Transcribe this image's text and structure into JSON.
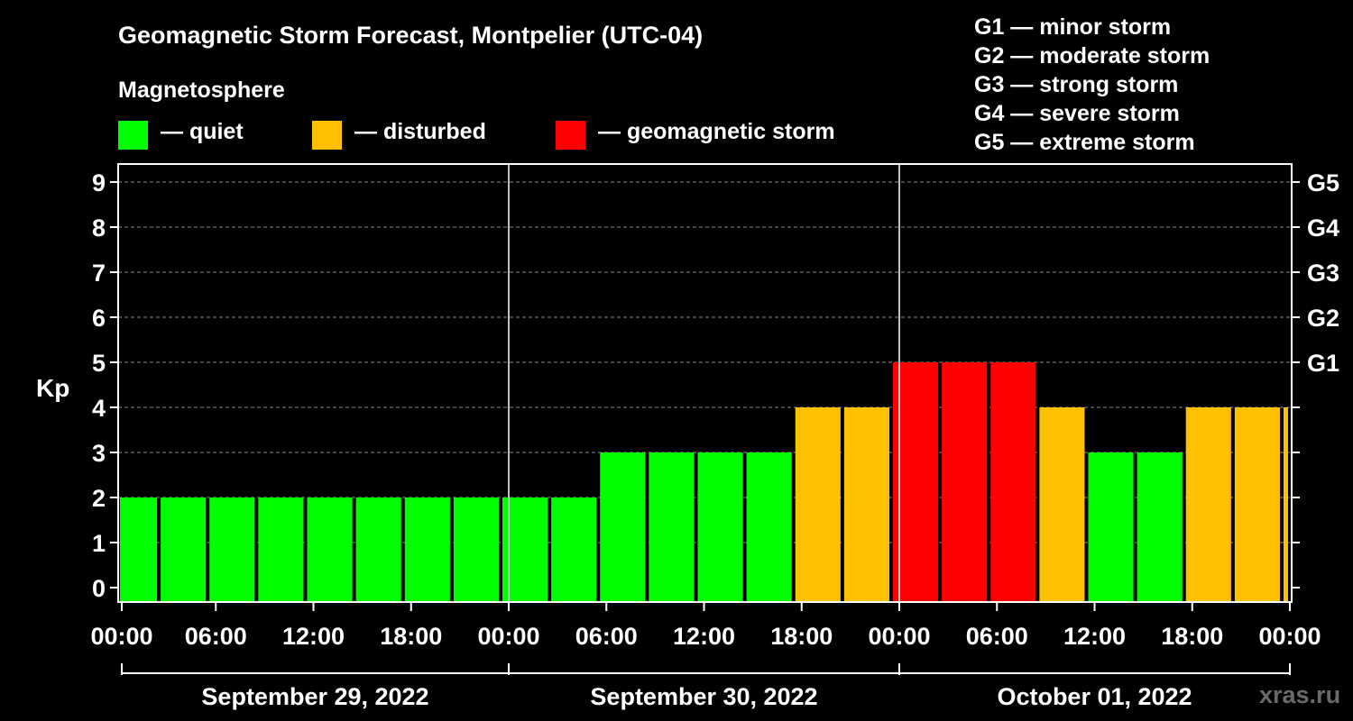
{
  "title": "Geomagnetic Storm Forecast, Montpelier (UTC-04)",
  "legend": {
    "title": "Magnetosphere",
    "items": [
      {
        "label": "— quiet",
        "color": "#00ff00"
      },
      {
        "label": "— disturbed",
        "color": "#ffc000"
      },
      {
        "label": "— geomagnetic storm",
        "color": "#ff0000"
      }
    ]
  },
  "g_scale": [
    "G1 — minor storm",
    "G2 — moderate storm",
    "G3 — strong storm",
    "G4 — severe storm",
    "G5 — extreme storm"
  ],
  "watermark": "xras.ru",
  "chart_data": {
    "type": "bar",
    "ylabel": "Kp",
    "ylim": [
      0,
      9
    ],
    "yticks": [
      0,
      1,
      2,
      3,
      4,
      5,
      6,
      7,
      8,
      9
    ],
    "right_ticks": [
      {
        "y": 5,
        "label": "G1"
      },
      {
        "y": 6,
        "label": "G2"
      },
      {
        "y": 7,
        "label": "G3"
      },
      {
        "y": 8,
        "label": "G4"
      },
      {
        "y": 9,
        "label": "G5"
      }
    ],
    "x_tick_labels": [
      "00:00",
      "06:00",
      "12:00",
      "18:00",
      "00:00",
      "06:00",
      "12:00",
      "18:00",
      "00:00",
      "06:00",
      "12:00",
      "18:00",
      "00:00"
    ],
    "days": [
      "September 29, 2022",
      "September 30, 2022",
      "October 01, 2022"
    ],
    "bar_interval_hours": 3,
    "values": [
      2,
      2,
      2,
      2,
      2,
      2,
      2,
      2,
      2,
      2,
      3,
      3,
      3,
      3,
      4,
      4,
      5,
      5,
      5,
      4,
      3,
      3,
      4,
      4,
      4
    ],
    "color_thresholds": {
      "quiet_max": 3,
      "disturbed_max": 4
    },
    "grid": true
  }
}
